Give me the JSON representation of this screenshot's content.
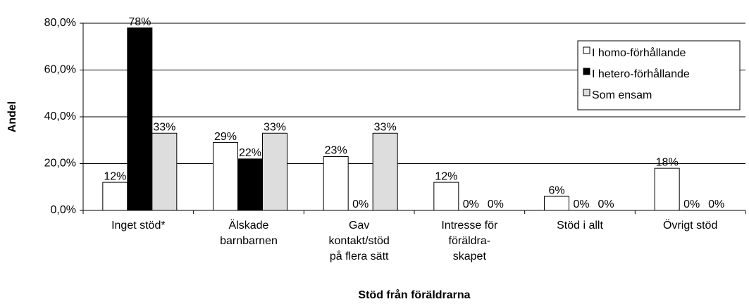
{
  "chart_data": {
    "type": "bar",
    "x_label": "Stöd från föräldrarna",
    "y_label": "Andel",
    "categories": [
      [
        "Inget stöd*"
      ],
      [
        "Älskade",
        "barnbarnen"
      ],
      [
        "Gav",
        "kontakt/stöd",
        "på flera sätt"
      ],
      [
        "Intresse för",
        "föräldra-",
        "skapet"
      ],
      [
        "Stöd i allt"
      ],
      [
        "Övrigt stöd"
      ]
    ],
    "series": [
      {
        "name": "I homo-förhållande",
        "color": "#ffffff",
        "values": [
          12,
          29,
          23,
          12,
          6,
          18
        ],
        "value_labels": [
          "12%",
          "29%",
          "23%",
          "12%",
          "6%",
          "18%"
        ]
      },
      {
        "name": "I hetero-förhållande",
        "color": "#000000",
        "values": [
          78,
          22,
          0,
          0,
          0,
          0
        ],
        "value_labels": [
          "78%",
          "22%",
          "0%",
          "0%",
          "0%",
          "0%"
        ]
      },
      {
        "name": "Som ensam",
        "color": "#dddddd",
        "values": [
          33,
          33,
          33,
          0,
          0,
          0
        ],
        "value_labels": [
          "33%",
          "33%",
          "33%",
          "0%",
          "0%",
          "0%"
        ]
      }
    ],
    "ylim": [
      0,
      80
    ],
    "yticks": [
      {
        "value": 0,
        "label": "0,0%"
      },
      {
        "value": 20,
        "label": "20,0%"
      },
      {
        "value": 40,
        "label": "40,0%"
      },
      {
        "value": 60,
        "label": "60,0%"
      },
      {
        "value": 80,
        "label": "80,0%"
      }
    ],
    "grid": true,
    "legend": "upper right"
  }
}
